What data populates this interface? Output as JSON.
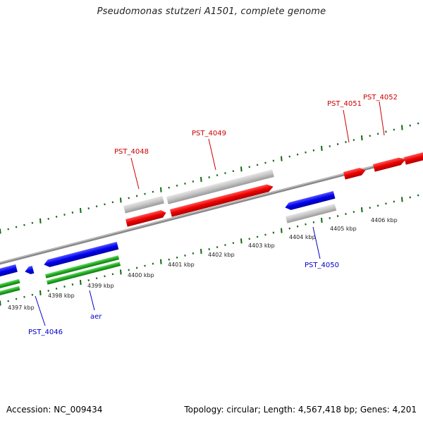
{
  "title": "Pseudomonas stutzeri A1501, complete genome",
  "footer": {
    "accession": "Accession: NC_009434",
    "summary": "Topology: circular; Length: 4,567,418 bp; Genes: 4,201"
  },
  "colors": {
    "backbone": "#8a8a8a",
    "forward_gene": "#ee0000",
    "forward_other": "#c8c8c8",
    "reverse_gene": "#0000ee",
    "reverse_rna": "#22aa22",
    "tick": "#116611",
    "label_forward": "#cc0000",
    "label_reverse": "#0000cc"
  },
  "ticks": [
    "4397 kbp",
    "4398 kbp",
    "4399 kbp",
    "4400 kbp",
    "4401 kbp",
    "4402 kbp",
    "4403 kbp",
    "4404 kbp",
    "4405 kbp",
    "4406 kbp"
  ],
  "gene_labels": {
    "pst4046": "PST_4046",
    "aer": "aer",
    "pst4048": "PST_4048",
    "pst4049": "PST_4049",
    "pst4050": "PST_4050",
    "pst4051": "PST_4051",
    "pst4052": "PST_4052"
  }
}
